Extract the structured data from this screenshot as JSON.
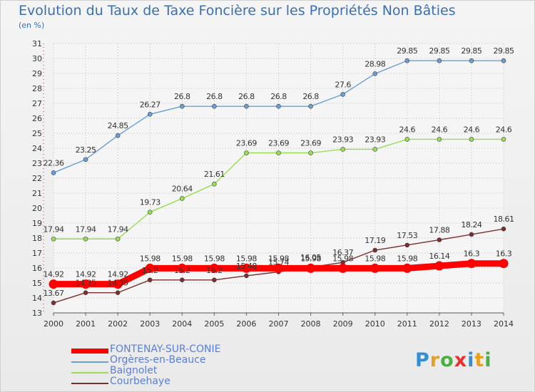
{
  "title": "Evolution du Taux de Taxe Foncière sur les Propriétés Non Bâties",
  "unit": "(en %)",
  "logo": "Proxiti",
  "logo_colors": [
    "#2f8fd8",
    "#e8a020",
    "#4ab040",
    "#e83030",
    "#2f8fd8",
    "#e8a020",
    "#4ab040"
  ],
  "chart_data": {
    "type": "line",
    "title": "Evolution du Taux de Taxe Foncière sur les Propriétés Non Bâties",
    "ylabel": "(en %)",
    "xlabel": "",
    "x": [
      2000,
      2001,
      2002,
      2003,
      2004,
      2005,
      2006,
      2007,
      2008,
      2009,
      2010,
      2011,
      2012,
      2013,
      2014
    ],
    "yticks": [
      13,
      14,
      15,
      16,
      17,
      18,
      19,
      20,
      21,
      22,
      23,
      24,
      25,
      26,
      27,
      28,
      29,
      30,
      31
    ],
    "ylim": [
      13,
      31
    ],
    "grid": true,
    "legend": "bottom-left",
    "series": [
      {
        "name": "FONTENAY-SUR-CONIE",
        "color": "#ff0000",
        "values": [
          14.92,
          14.92,
          14.92,
          15.98,
          15.98,
          15.98,
          15.98,
          15.98,
          15.98,
          15.98,
          15.98,
          15.98,
          16.14,
          16.3,
          16.3
        ],
        "labels": [
          "14.92",
          "14.92",
          "14.92",
          "15.98",
          "15.98",
          "15.98",
          "15.98",
          "15.98",
          "15.98",
          "15.98",
          "15.98",
          "15.98",
          "16.14",
          "16.3",
          "16.3"
        ]
      },
      {
        "name": "Orgères-en-Beauce",
        "color": "#6a9fd4",
        "values": [
          22.36,
          23.25,
          24.85,
          26.27,
          26.8,
          26.8,
          26.8,
          26.8,
          26.8,
          27.6,
          28.98,
          29.85,
          29.85,
          29.85,
          29.85
        ],
        "labels": [
          "22.36",
          "23.25",
          "24.85",
          "26.27",
          "26.8",
          "26.8",
          "26.8",
          "26.8",
          "26.8",
          "27.6",
          "28.98",
          "29.85",
          "29.85",
          "29.85",
          "29.85"
        ]
      },
      {
        "name": "Baignolet",
        "color": "#99dd55",
        "values": [
          17.94,
          17.94,
          17.94,
          19.73,
          20.64,
          21.61,
          23.69,
          23.69,
          23.69,
          23.93,
          23.93,
          24.6,
          24.6,
          24.6,
          24.6
        ],
        "labels": [
          "17.94",
          "17.94",
          "17.94",
          "19.73",
          "20.64",
          "21.61",
          "23.69",
          "23.69",
          "23.69",
          "23.93",
          "23.93",
          "24.6",
          "24.6",
          "24.6",
          "24.6"
        ]
      },
      {
        "name": "Courbehaye",
        "color": "#7a2f2f",
        "values": [
          13.67,
          14.35,
          14.35,
          15.2,
          15.2,
          15.2,
          15.48,
          15.74,
          16.05,
          16.37,
          17.19,
          17.53,
          17.88,
          18.24,
          18.61
        ],
        "labels": [
          "13.67",
          "14.35",
          "14.35",
          "15.2",
          "15.2",
          "15.2",
          "15.48",
          "15.74",
          "16.05",
          "16.37",
          "17.19",
          "17.53",
          "17.88",
          "18.24",
          "18.61"
        ]
      }
    ]
  }
}
